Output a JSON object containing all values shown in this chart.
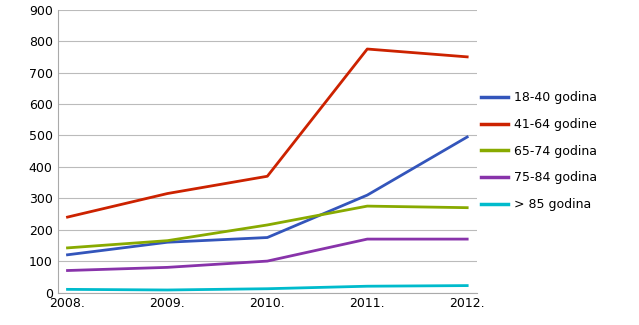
{
  "years": [
    0,
    1,
    2,
    3,
    4
  ],
  "year_labels": [
    "2008.",
    "2009.",
    "2010.",
    "2011.",
    "2012."
  ],
  "series": [
    {
      "label": "18-40 godina",
      "color": "#3355BB",
      "values": [
        120,
        160,
        175,
        310,
        495
      ]
    },
    {
      "label": "41-64 godine",
      "color": "#CC2200",
      "values": [
        240,
        315,
        370,
        775,
        750
      ]
    },
    {
      "label": "65-74 godina",
      "color": "#88AA00",
      "values": [
        142,
        165,
        215,
        275,
        270
      ]
    },
    {
      "label": "75-84 godina",
      "color": "#8833AA",
      "values": [
        70,
        80,
        100,
        170,
        170
      ]
    },
    {
      "label": "> 85 godina",
      "color": "#00BBCC",
      "values": [
        10,
        8,
        12,
        20,
        22
      ]
    }
  ],
  "ylim": [
    0,
    900
  ],
  "yticks": [
    0,
    100,
    200,
    300,
    400,
    500,
    600,
    700,
    800,
    900
  ],
  "background_color": "#ffffff",
  "grid_color": "#bbbbbb",
  "legend_fontsize": 9,
  "tick_fontsize": 9,
  "linewidth": 2.0
}
